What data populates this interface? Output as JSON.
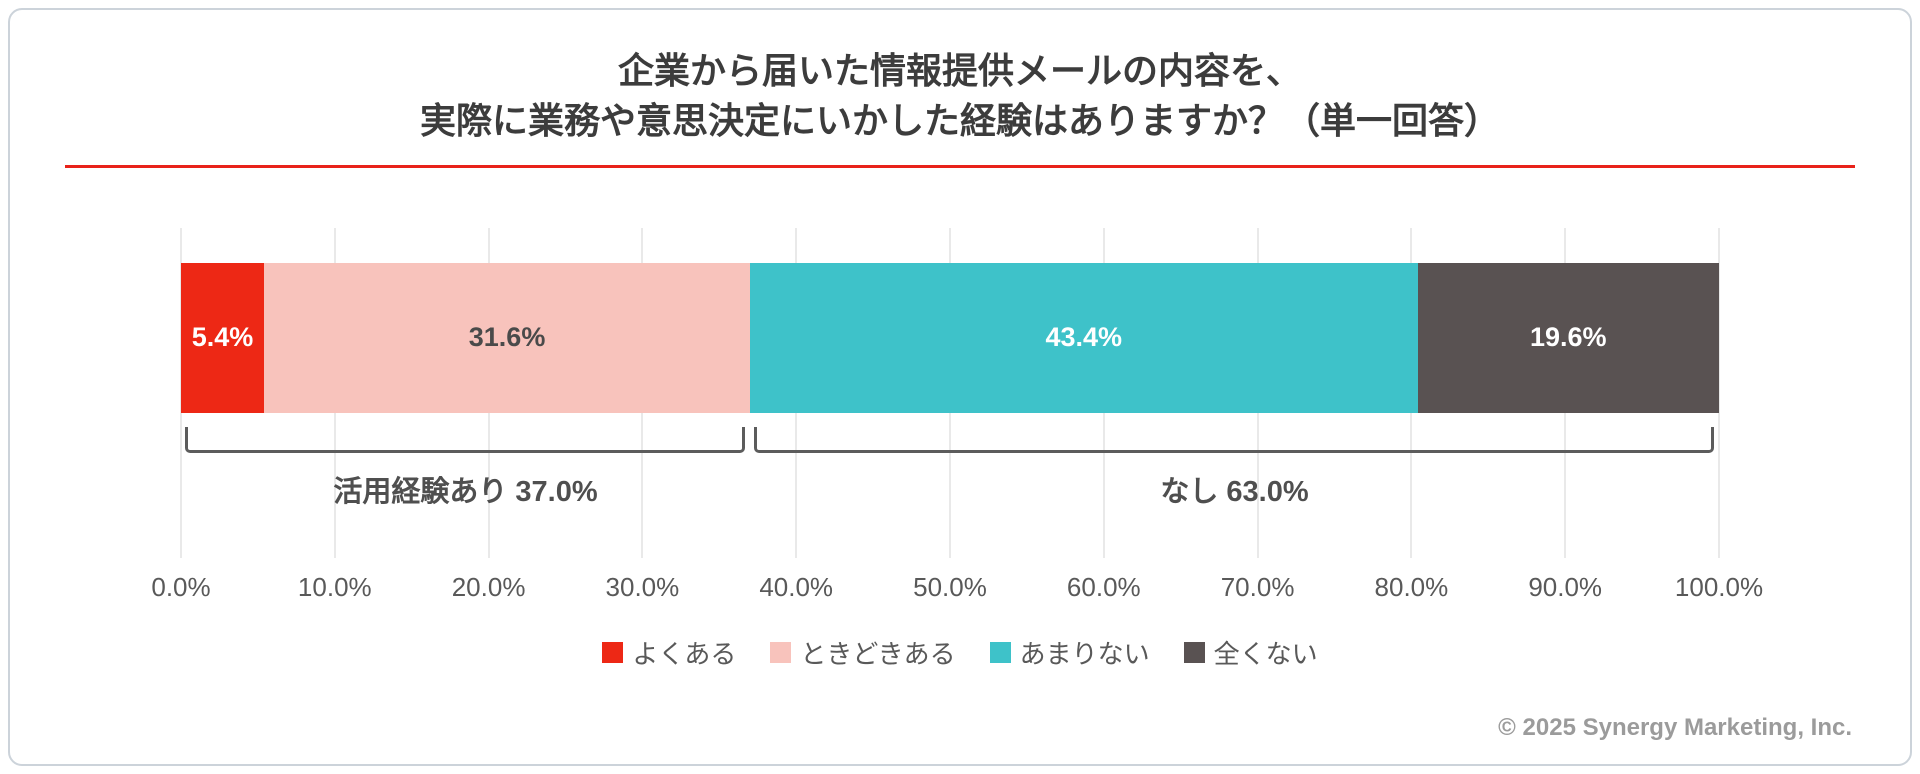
{
  "title": {
    "line1": "企業から届いた情報提供メールの内容を、",
    "line2": "実際に業務や意思決定にいかした経験はありますか？（単一回答）"
  },
  "chart_data": {
    "type": "bar",
    "orientation": "horizontal-stacked",
    "title": "企業から届いた情報提供メールの内容を、実際に業務や意思決定にいかした経験はありますか？（単一回答）",
    "xlim": [
      0,
      100
    ],
    "x_ticks": [
      "0.0%",
      "10.0%",
      "20.0%",
      "30.0%",
      "40.0%",
      "50.0%",
      "60.0%",
      "70.0%",
      "80.0%",
      "90.0%",
      "100.0%"
    ],
    "series": [
      {
        "id": "yoku-aru",
        "name": "よくある",
        "value": 5.4,
        "label": "5.4%",
        "color": "#ed2815",
        "text_color": "#ffffff"
      },
      {
        "id": "tokidoki-aru",
        "name": "ときどきある",
        "value": 31.6,
        "label": "31.6%",
        "color": "#f8c3bc",
        "text_color": "#4a4a4a"
      },
      {
        "id": "amari-nai",
        "name": "あまりない",
        "value": 43.4,
        "label": "43.4%",
        "color": "#3ec2c9",
        "text_color": "#ffffff"
      },
      {
        "id": "mattaku-nai",
        "name": "全くない",
        "value": 19.6,
        "label": "19.6%",
        "color": "#595252",
        "text_color": "#ffffff"
      }
    ],
    "groups": [
      {
        "id": "katsuyou-ari",
        "label": "活用経験あり 37.0%",
        "start": 0,
        "end": 37
      },
      {
        "id": "nashi",
        "label": "なし 63.0%",
        "start": 37,
        "end": 100
      }
    ],
    "legend_position": "bottom",
    "grid": true
  },
  "colors": {
    "accent_line": "#e8221a",
    "gridline": "#e9e9e9",
    "bracket": "#5c5c5c",
    "card_border": "#ccd3da",
    "text_primary": "#3c3c3c",
    "text_secondary": "#595959",
    "copyright_text": "#9b9b9b"
  },
  "footer": {
    "copyright": "© 2025 Synergy Marketing, Inc."
  }
}
